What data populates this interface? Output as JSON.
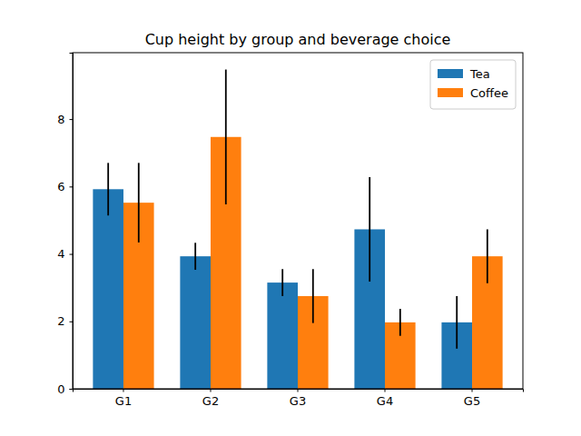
{
  "chart_data": {
    "type": "bar",
    "title": "Cup height by group and beverage choice",
    "categories": [
      "G1",
      "G2",
      "G3",
      "G4",
      "G5"
    ],
    "series": [
      {
        "name": "Tea",
        "color": "#1f77b4",
        "values": [
          5.92,
          3.93,
          3.15,
          4.73,
          1.97
        ],
        "errors": [
          0.78,
          0.4,
          0.4,
          1.55,
          0.78
        ]
      },
      {
        "name": "Coffee",
        "color": "#ff7f0e",
        "values": [
          5.52,
          7.47,
          2.75,
          1.97,
          3.93
        ],
        "errors": [
          1.18,
          2.0,
          0.8,
          0.4,
          0.8
        ]
      }
    ],
    "ylim": [
      0,
      9.97
    ],
    "yticks": [
      0,
      2,
      4,
      6,
      8
    ],
    "grid": false,
    "legend": "upper right"
  }
}
